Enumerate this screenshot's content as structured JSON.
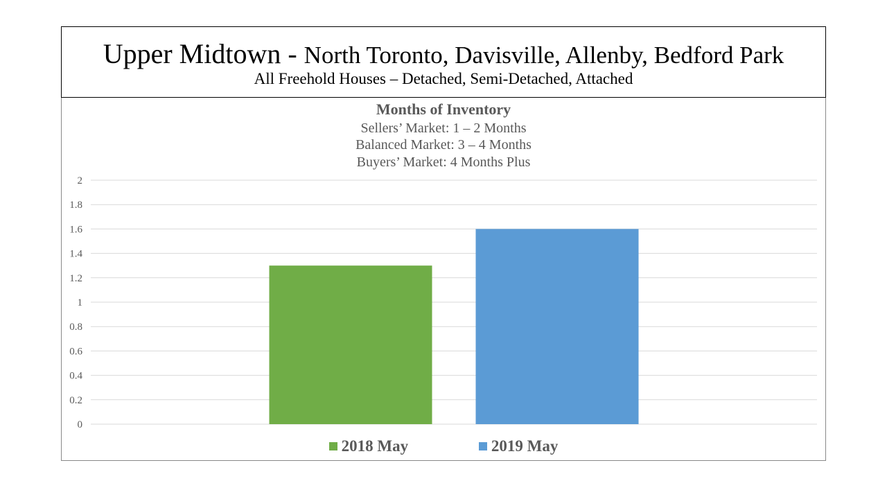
{
  "header": {
    "title_main": "Upper Midtown",
    "title_sep": " - ",
    "title_rest": "North Toronto, Davisville, Allenby, Bedford Park",
    "subtitle": "All Freehold Houses – Detached, Semi-Detached, Attached"
  },
  "chart_data": {
    "type": "bar",
    "title": "Months of Inventory",
    "subtitles": [
      "Sellers’ Market:  1 – 2 Months",
      "Balanced Market:  3 – 4 Months",
      "Buyers’ Market:  4 Months Plus"
    ],
    "categories": [
      ""
    ],
    "series": [
      {
        "name": "2018 May",
        "values": [
          1.3
        ],
        "color": "#70ad47"
      },
      {
        "name": "2019 May",
        "values": [
          1.6
        ],
        "color": "#5b9bd5"
      }
    ],
    "ylim": [
      0,
      2
    ],
    "yticks": [
      "0",
      "0.2",
      "0.4",
      "0.6",
      "0.8",
      "1",
      "1.2",
      "1.4",
      "1.6",
      "1.8",
      "2"
    ],
    "grid": true,
    "legend_position": "bottom"
  }
}
